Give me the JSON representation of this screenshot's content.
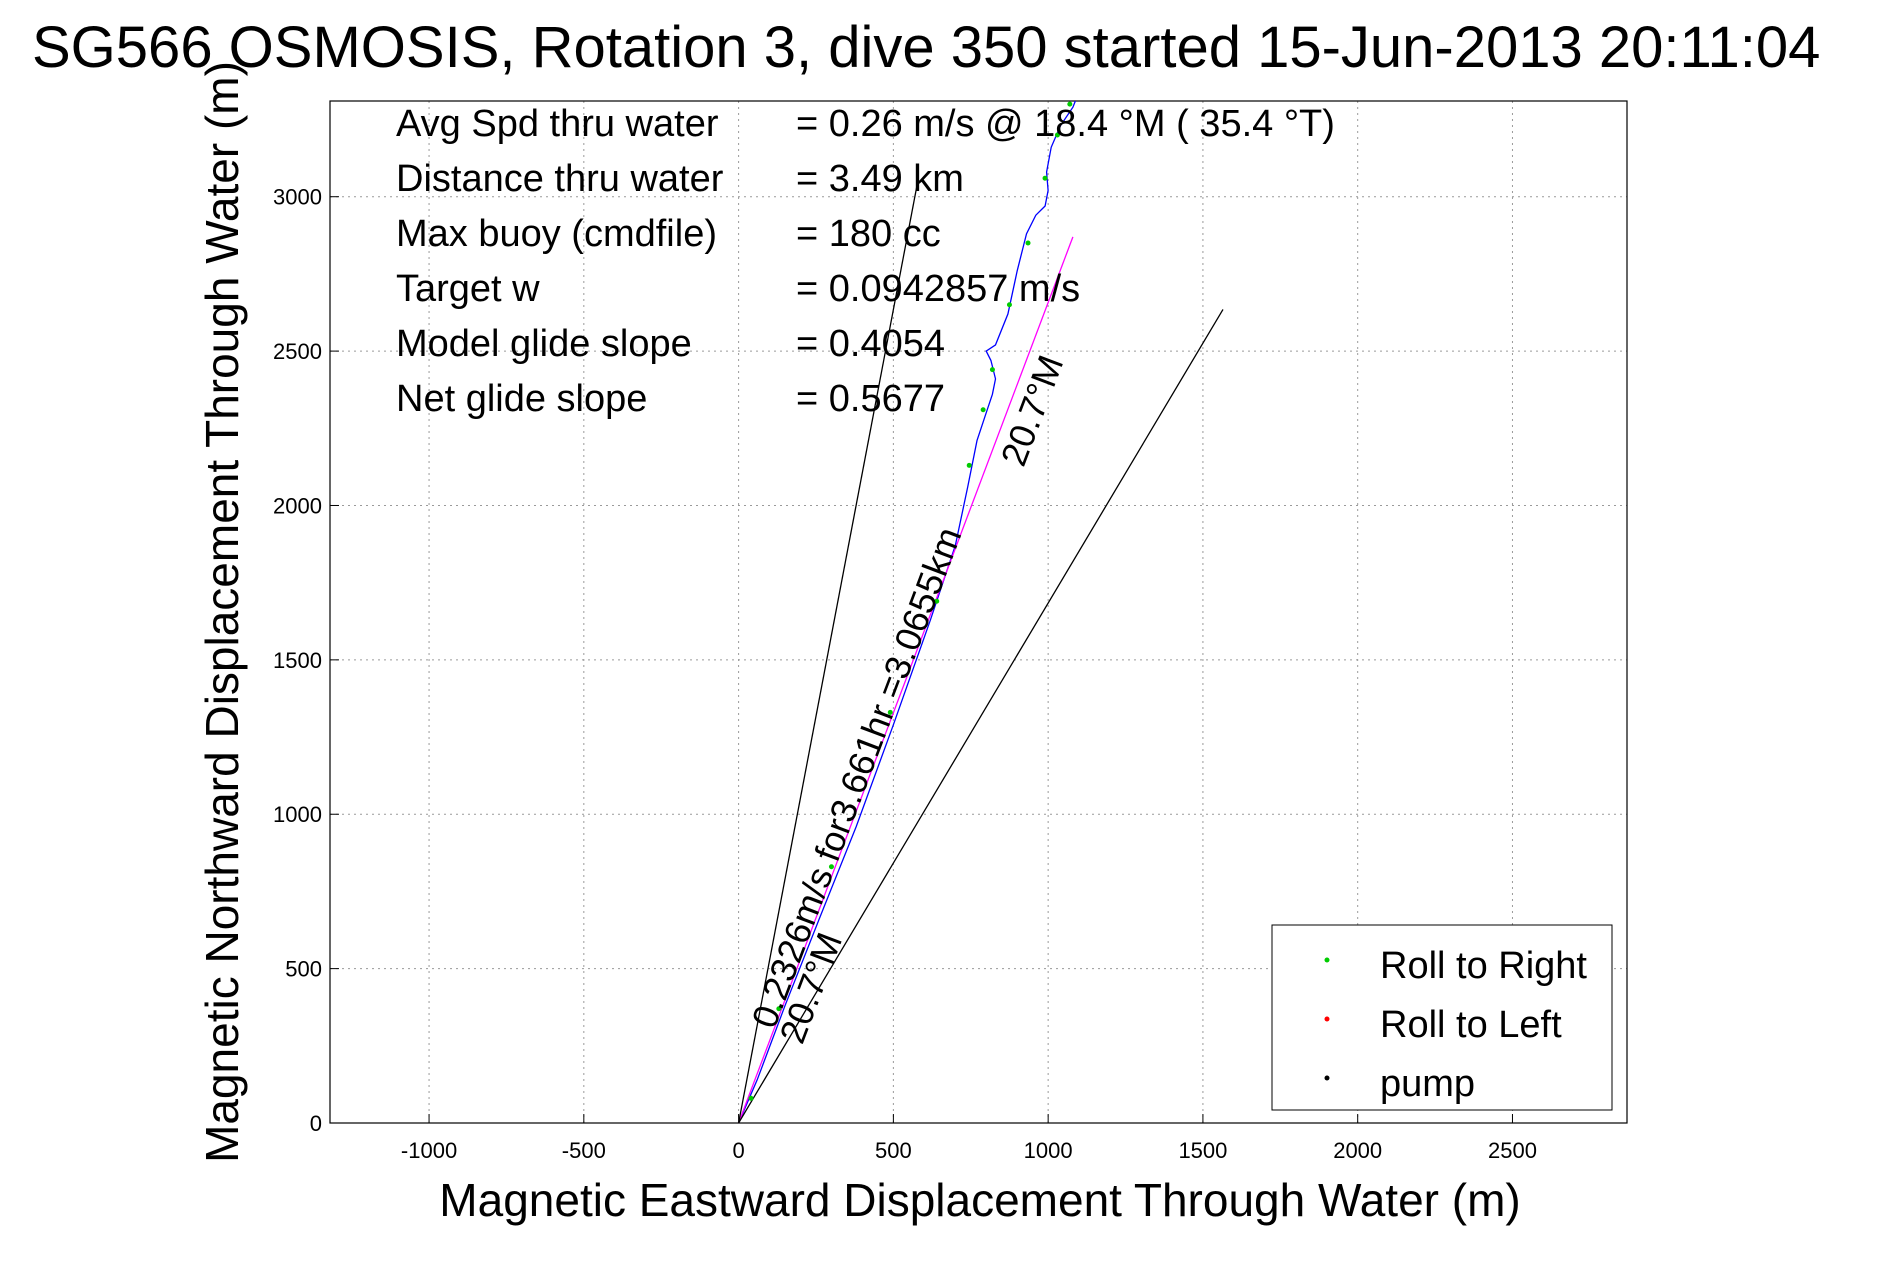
{
  "chart_data": {
    "type": "line",
    "title": "SG566 OSMOSIS, Rotation 3, dive 350 started 15-Jun-2013 20:11:04",
    "xlabel": "Magnetic Eastward Displacement Through Water (m)",
    "ylabel": "Magnetic Northward Displacement Through Water (m)",
    "xlim": [
      -1320,
      2870
    ],
    "ylim": [
      0,
      3310
    ],
    "xticks": [
      -1000,
      -500,
      0,
      500,
      1000,
      1500,
      2000,
      2500
    ],
    "yticks": [
      0,
      500,
      1000,
      1500,
      2000,
      2500,
      3000
    ],
    "grid": true,
    "legend_position": "bottom-right",
    "info": [
      {
        "label": "Avg Spd thru water",
        "value": "=  0.26 m/s @  18.4 °M ( 35.4 °T)"
      },
      {
        "label": "Distance thru water",
        "value": "=  3.49 km"
      },
      {
        "label": "Max buoy (cmdfile)",
        "value": "= 180 cc"
      },
      {
        "label": "Target w",
        "value": "= 0.0942857 m/s"
      },
      {
        "label": "Model glide slope",
        "value": "= 0.4054"
      },
      {
        "label": "Net glide slope",
        "value": "= 0.5677"
      }
    ],
    "annotations": [
      {
        "text": "0.2326m/s for3.661hr =3.0655km",
        "at": [
          115,
          300
        ],
        "angle_deg": 20.7
      },
      {
        "text": "20.7°M",
        "at": [
          205,
          250
        ],
        "angle_deg": 20.7
      },
      {
        "text": "20.7°M",
        "at": [
          920,
          2120
        ],
        "angle_deg": 20.7
      }
    ],
    "series": [
      {
        "name": "track",
        "color": "#0000ff",
        "x": [
          0,
          60,
          150,
          260,
          380,
          500,
          620,
          700,
          740,
          770,
          800,
          820,
          830,
          815,
          800,
          830,
          870,
          900,
          930,
          960,
          990,
          1000,
          995,
          1010,
          1040,
          1080,
          1100
        ],
        "y": [
          0,
          140,
          380,
          660,
          960,
          1290,
          1630,
          1870,
          2060,
          2210,
          2300,
          2360,
          2410,
          2470,
          2500,
          2520,
          2620,
          2760,
          2880,
          2940,
          2970,
          3020,
          3080,
          3160,
          3230,
          3290,
          3340
        ]
      },
      {
        "name": "current",
        "color": "#ff00ff",
        "x": [
          0,
          1080
        ],
        "y": [
          0,
          2870
        ]
      },
      {
        "name": "bound",
        "color": "#000000",
        "x": [
          0,
          575
        ],
        "y": [
          0,
          3030
        ]
      },
      {
        "name": "bound",
        "color": "#000000",
        "x": [
          0,
          1565
        ],
        "y": [
          0,
          2635
        ]
      },
      {
        "name": "Roll to Right",
        "color": "#00cc00",
        "marker": "dot",
        "x": [
          40,
          130,
          300,
          490,
          640,
          745,
          790,
          820,
          875,
          935,
          990,
          1030,
          1070
        ],
        "y": [
          80,
          370,
          830,
          1330,
          1690,
          2130,
          2310,
          2440,
          2650,
          2850,
          3060,
          3200,
          3300
        ]
      },
      {
        "name": "Roll to Left",
        "color": "#ff0000",
        "marker": "dot",
        "x": [],
        "y": []
      },
      {
        "name": "pump",
        "color": "#000000",
        "marker": "dot",
        "x": [],
        "y": []
      }
    ],
    "legend": [
      {
        "label": "Roll to Right",
        "color": "#00cc00"
      },
      {
        "label": "Roll to Left",
        "color": "#ff0000"
      },
      {
        "label": "pump",
        "color": "#000000"
      }
    ]
  }
}
